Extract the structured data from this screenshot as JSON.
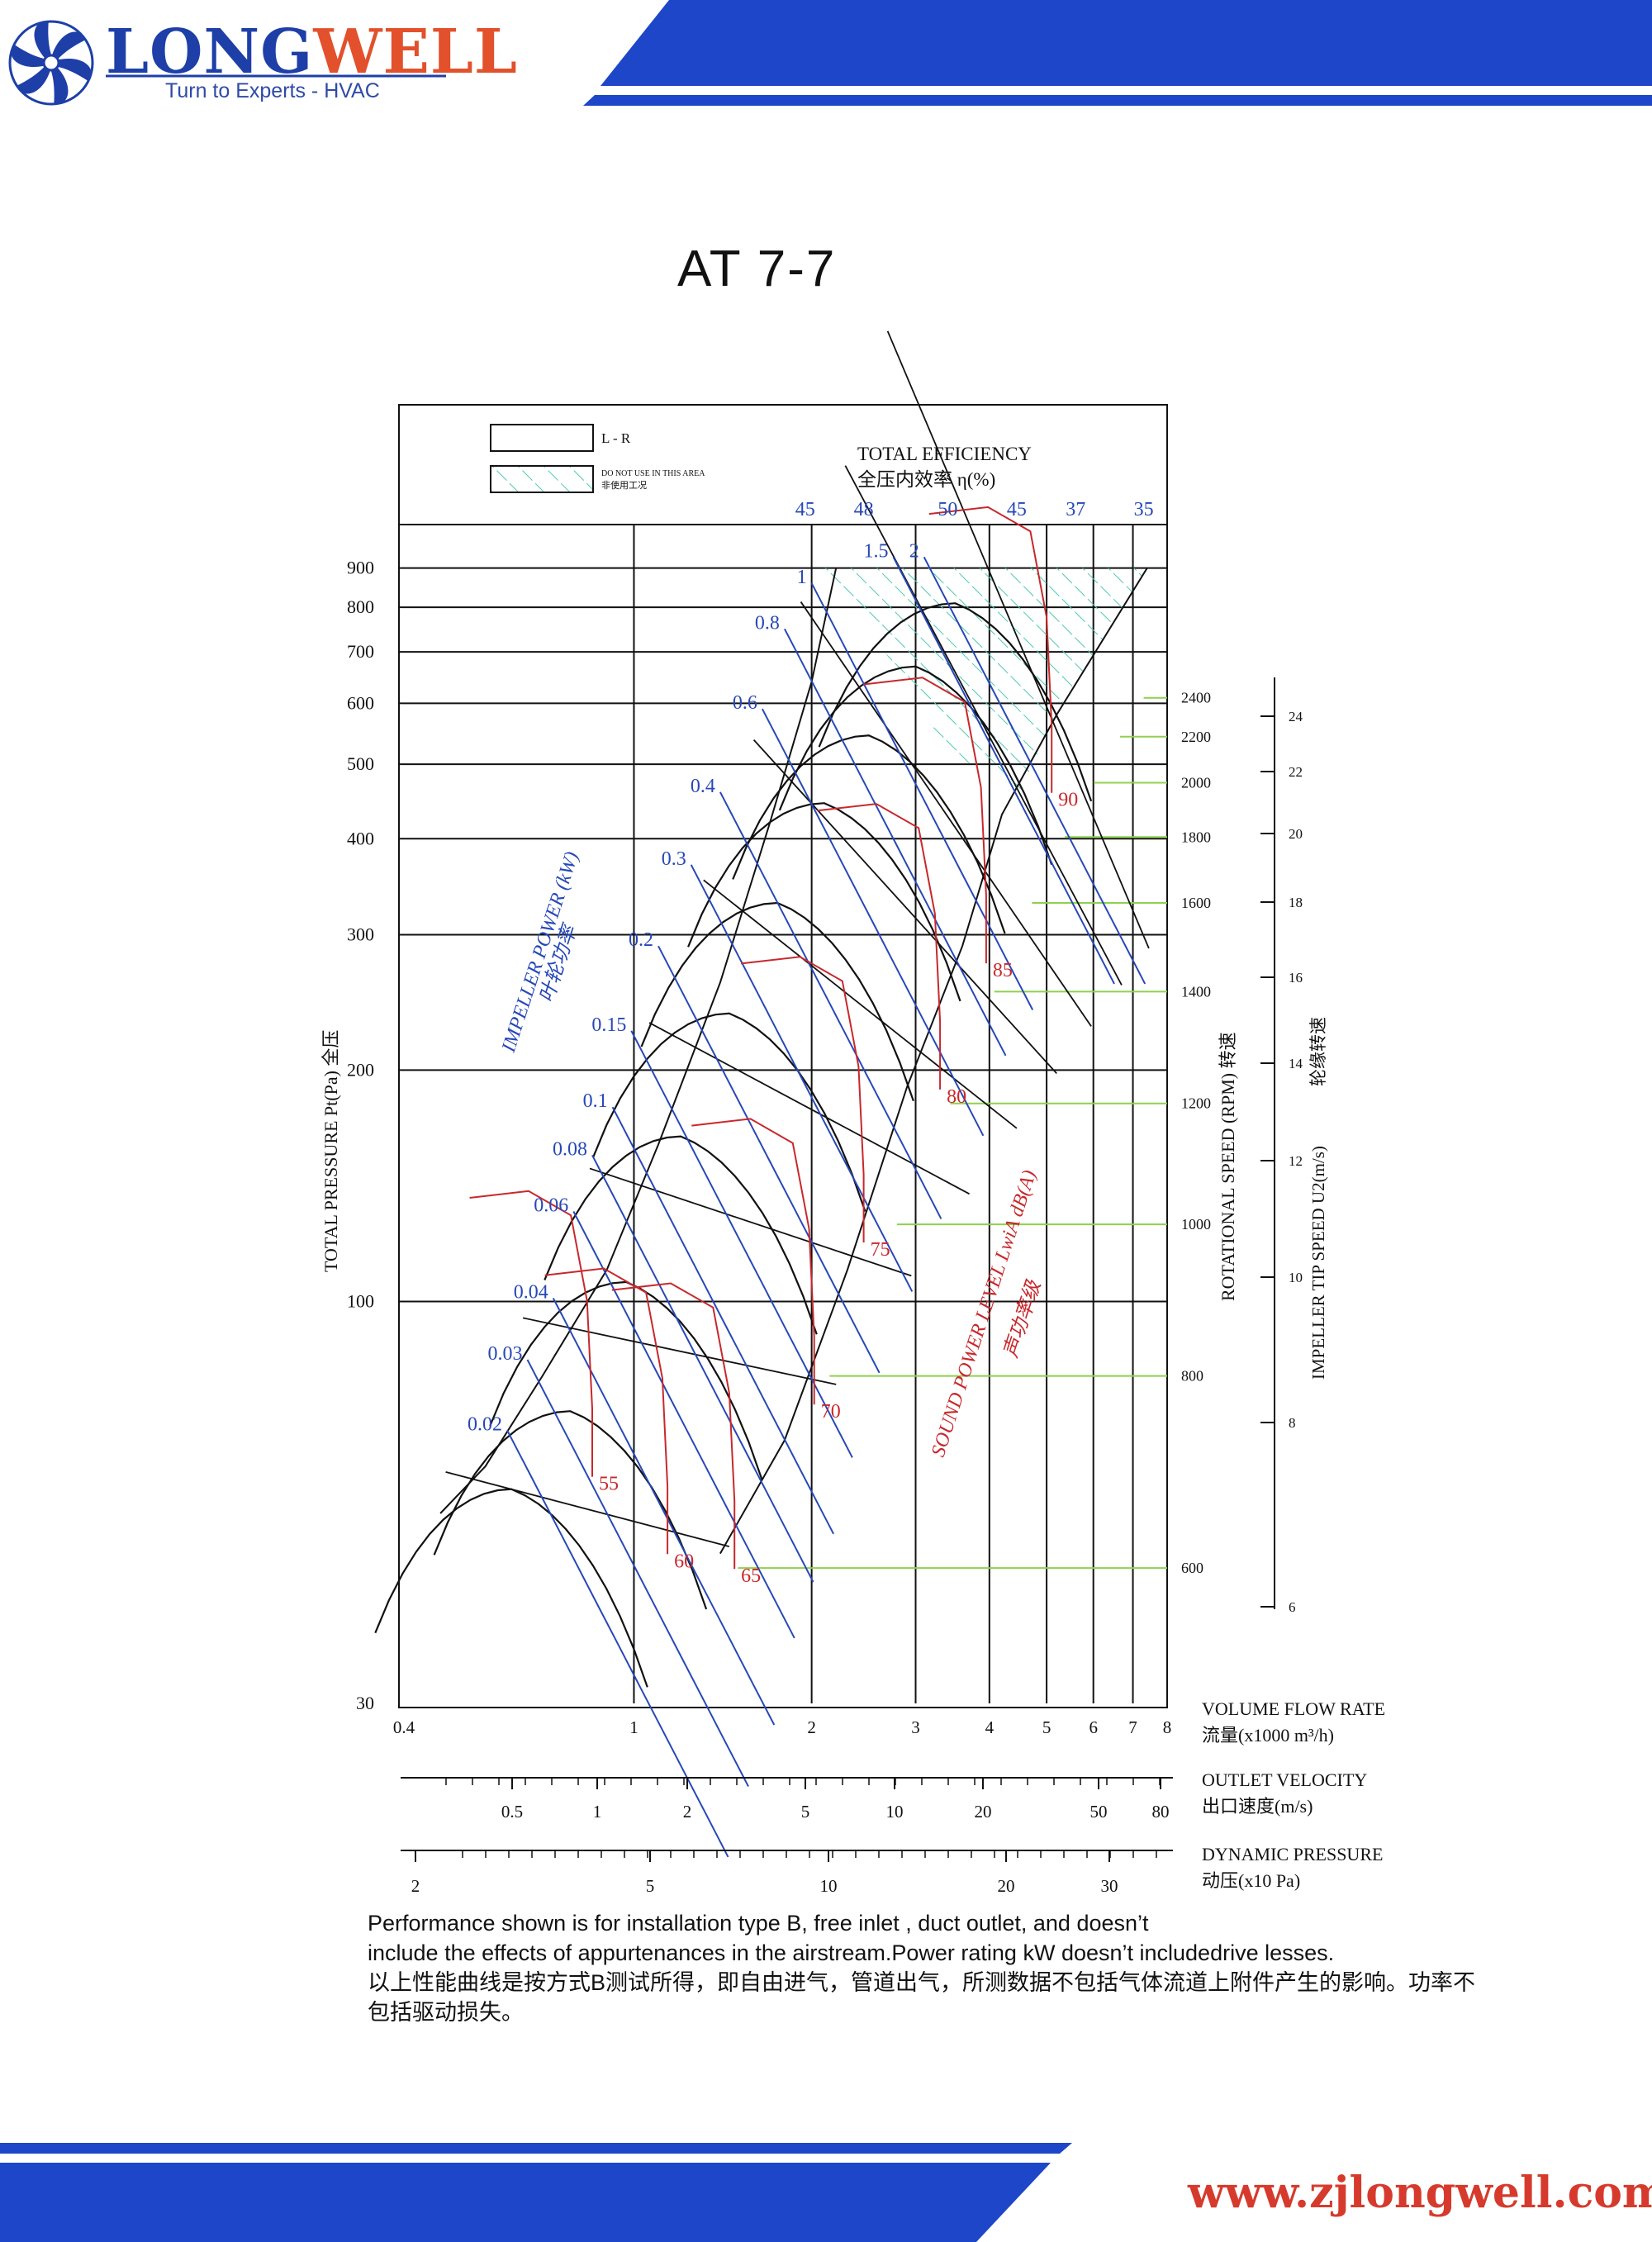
{
  "brand": {
    "name_part1": "LONG",
    "name_part2": "WELL",
    "tagline": "Turn to Experts - HVAC",
    "website": "www.zjlongwell.com"
  },
  "page_title": "AT 7-7",
  "legend": {
    "lr_label": "L - R",
    "hatched_label_en": "DO NOT USE IN THIS AREA",
    "hatched_label_cn": "非使用工况"
  },
  "notes": {
    "line1": "Performance shown is for installation type B, free inlet , duct outlet, and doesn’t",
    "line2": "include the effects of appurtenances in the airstream.Power rating kW doesn’t includedrive lesses.",
    "line3": "以上性能曲线是按方式B测试所得，即自由进气，管道出气，所测数据不包括气体流道上附件产生的影响。功率不",
    "line4": "包括驱动损失。"
  },
  "colors": {
    "brand_blue": "#1e3fa8",
    "brand_orange": "#e2502c",
    "band_blue": "#1d46c8",
    "efficiency_black": "#000000",
    "power_blue": "#2748b8",
    "sound_red": "#c8282c",
    "speed_green": "#8fd14f",
    "hatch_teal": "#4cc9b0"
  },
  "chart_data": {
    "type": "line",
    "title": "AT 7-7",
    "x_scale": "log",
    "y_scale": "log",
    "xlim": [
      0.4,
      8
    ],
    "ylim": [
      30,
      1000
    ],
    "xlabel_en": "VOLUME FLOW RATE",
    "xlabel_cn": "流量(x1000 m³/h)",
    "ylabel": "TOTAL PRESSURE Pt(Pa)  全压",
    "x_ticks": [
      {
        "label": "0.4",
        "value": 0.4
      },
      {
        "label": "1",
        "value": 1
      },
      {
        "label": "2",
        "value": 2
      },
      {
        "label": "3",
        "value": 3
      },
      {
        "label": "4",
        "value": 4
      },
      {
        "label": "5",
        "value": 5
      },
      {
        "label": "6",
        "value": 6
      },
      {
        "label": "7",
        "value": 7
      },
      {
        "label": "8",
        "value": 8
      }
    ],
    "y_ticks": [
      {
        "label": "30",
        "value": 30
      },
      {
        "label": "100",
        "value": 100
      },
      {
        "label": "200",
        "value": 200
      },
      {
        "label": "300",
        "value": 300
      },
      {
        "label": "400",
        "value": 400
      },
      {
        "label": "500",
        "value": 500
      },
      {
        "label": "600",
        "value": 600
      },
      {
        "label": "700",
        "value": 700
      },
      {
        "label": "800",
        "value": 800
      },
      {
        "label": "900",
        "value": 900
      }
    ],
    "outlet_velocity_axis": {
      "label_en": "OUTLET VELOCITY",
      "label_cn": "出口速度(m/s)",
      "ticks": [
        {
          "label": "0.5",
          "value": 0.5
        },
        {
          "label": "1",
          "value": 1
        },
        {
          "label": "2",
          "value": 2
        },
        {
          "label": "5",
          "value": 5
        },
        {
          "label": "10",
          "value": 10
        },
        {
          "label": "20",
          "value": 20
        },
        {
          "label": "50",
          "value": 50
        },
        {
          "label": "80",
          "value": 80
        }
      ]
    },
    "dynamic_pressure_axis": {
      "label_en": "DYNAMIC PRESSURE",
      "label_cn": "动压(x10 Pa)",
      "ticks": [
        {
          "label": "2",
          "value": 2
        },
        {
          "label": "5",
          "value": 5
        },
        {
          "label": "10",
          "value": 10
        },
        {
          "label": "20",
          "value": 20
        },
        {
          "label": "30",
          "value": 30
        }
      ]
    },
    "rotational_speed_axis": {
      "label": "ROTATIONAL SPEED (RPM) 转速",
      "ticks": [
        {
          "label": "2400",
          "value": 2400,
          "y": 610
        },
        {
          "label": "2200",
          "value": 2200,
          "y": 543
        },
        {
          "label": "2000",
          "value": 2000,
          "y": 473
        },
        {
          "label": "1800",
          "value": 1800,
          "y": 402
        },
        {
          "label": "1600",
          "value": 1600,
          "y": 330
        },
        {
          "label": "1400",
          "value": 1400,
          "y": 253
        },
        {
          "label": "1200",
          "value": 1200,
          "y": 181
        },
        {
          "label": "1000",
          "value": 1000,
          "y": 126
        },
        {
          "label": "800",
          "value": 800,
          "y": 80
        },
        {
          "label": "600",
          "value": 600,
          "y": 45
        }
      ]
    },
    "tip_speed_axis": {
      "label": "IMPELLER TIP SPEED U2(m/s)",
      "label_cn": "轮缘转速",
      "ticks": [
        {
          "label": "24",
          "value": 24
        },
        {
          "label": "22",
          "value": 22
        },
        {
          "label": "20",
          "value": 20
        },
        {
          "label": "18",
          "value": 18
        },
        {
          "label": "16",
          "value": 16
        },
        {
          "label": "14",
          "value": 14
        },
        {
          "label": "12",
          "value": 12
        },
        {
          "label": "10",
          "value": 10
        },
        {
          "label": "8",
          "value": 8
        },
        {
          "label": "6",
          "value": 6
        }
      ]
    },
    "efficiency": {
      "label_en": "TOTAL EFFICIENCY",
      "label_cn": "全压内效率  η(%)",
      "values": [
        "45",
        "48",
        "50",
        "45",
        "37",
        "35"
      ]
    },
    "impeller_power": {
      "label_en": "IMPELLER POWER (kW)",
      "label_cn": "叶轮功率",
      "labels": [
        {
          "label": "2",
          "x": 3.1,
          "y": 930
        },
        {
          "label": "1.5",
          "x": 2.75,
          "y": 930
        },
        {
          "label": "1",
          "x": 2.0,
          "y": 860
        },
        {
          "label": "0.8",
          "x": 1.8,
          "y": 750
        },
        {
          "label": "0.6",
          "x": 1.65,
          "y": 590
        },
        {
          "label": "0.4",
          "x": 1.4,
          "y": 460
        },
        {
          "label": "0.3",
          "x": 1.25,
          "y": 370
        },
        {
          "label": "0.2",
          "x": 1.1,
          "y": 290
        },
        {
          "label": "0.15",
          "x": 0.99,
          "y": 225
        },
        {
          "label": "0.1",
          "x": 0.92,
          "y": 179
        },
        {
          "label": "0.08",
          "x": 0.85,
          "y": 155
        },
        {
          "label": "0.06",
          "x": 0.79,
          "y": 131
        },
        {
          "label": "0.04",
          "x": 0.73,
          "y": 101
        },
        {
          "label": "0.03",
          "x": 0.66,
          "y": 84
        },
        {
          "label": "0.02",
          "x": 0.61,
          "y": 68
        }
      ]
    },
    "sound_power": {
      "label_en": "SOUND POWER LEVEL LwiA dB(A)",
      "label_cn": "声功率级",
      "levels": [
        {
          "label": "55",
          "x": 0.85,
          "y": 58
        },
        {
          "label": "60",
          "x": 1.14,
          "y": 46
        },
        {
          "label": "65",
          "x": 1.48,
          "y": 44
        },
        {
          "label": "70",
          "x": 2.02,
          "y": 72
        },
        {
          "label": "75",
          "x": 2.45,
          "y": 117
        },
        {
          "label": "80",
          "x": 3.3,
          "y": 185
        },
        {
          "label": "85",
          "x": 3.95,
          "y": 270
        },
        {
          "label": "90",
          "x": 5.1,
          "y": 450
        }
      ]
    },
    "legend": [
      "L - R",
      "DO NOT USE IN THIS AREA"
    ]
  }
}
